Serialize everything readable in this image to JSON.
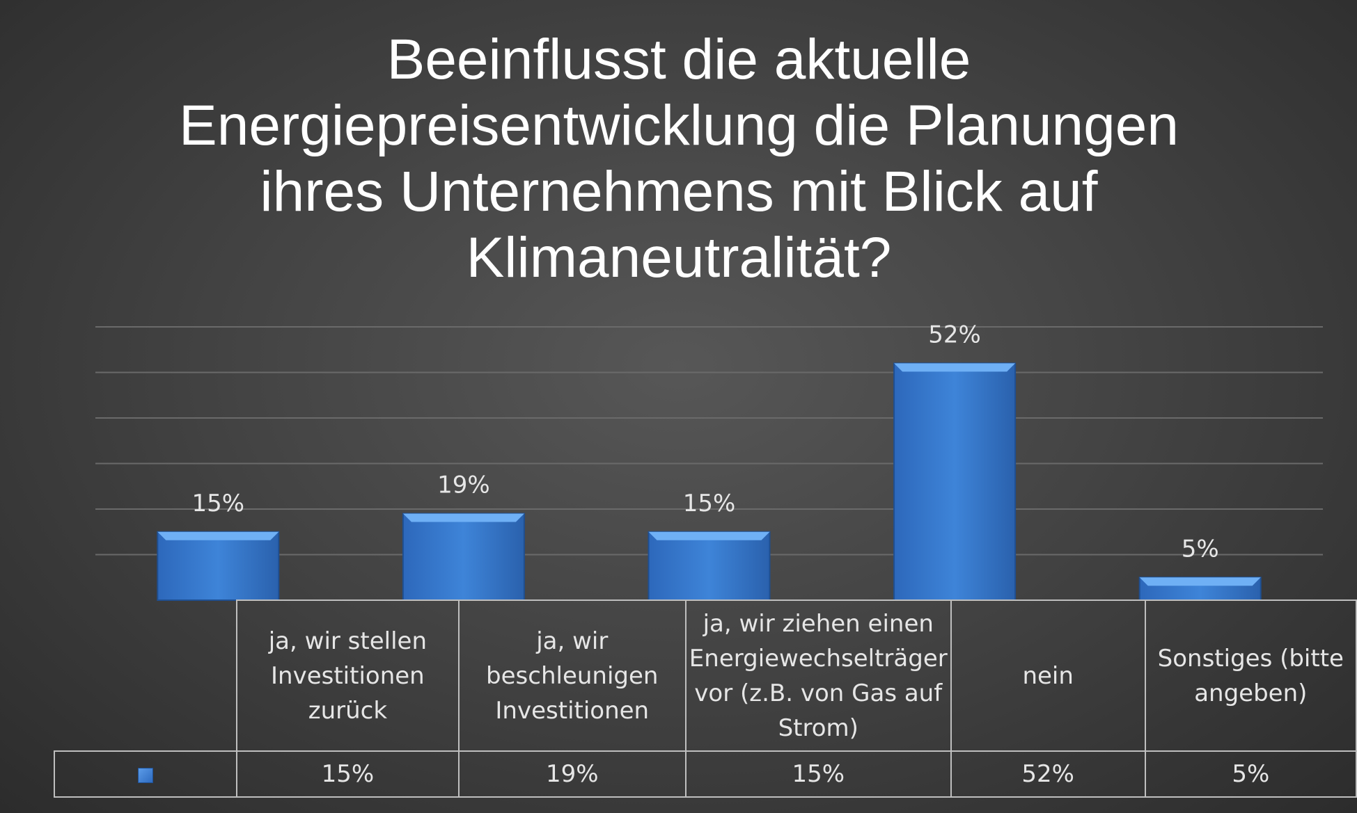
{
  "chart_data": {
    "type": "bar",
    "title": "Beeinflusst die aktuelle Energiepreisentwicklung die Planungen ihres Unternehmens mit Blick auf Klimaneutralität?",
    "categories": [
      "ja, wir stellen Investitionen zurück",
      "ja, wir beschleunigen Investitionen",
      "ja, wir ziehen einen Energiewechselträger vor (z.B. von Gas auf Strom)",
      "nein",
      "Sonstiges (bitte angeben)"
    ],
    "values": [
      15,
      19,
      15,
      52,
      5
    ],
    "data_labels": [
      "15%",
      "19%",
      "15%",
      "52%",
      "5%"
    ],
    "ylim": [
      0,
      60
    ],
    "grid": true,
    "data_table": true,
    "colors": {
      "bar": "#3c7dd4",
      "bar_top": "#6fb0f5",
      "background": "#444444"
    }
  }
}
